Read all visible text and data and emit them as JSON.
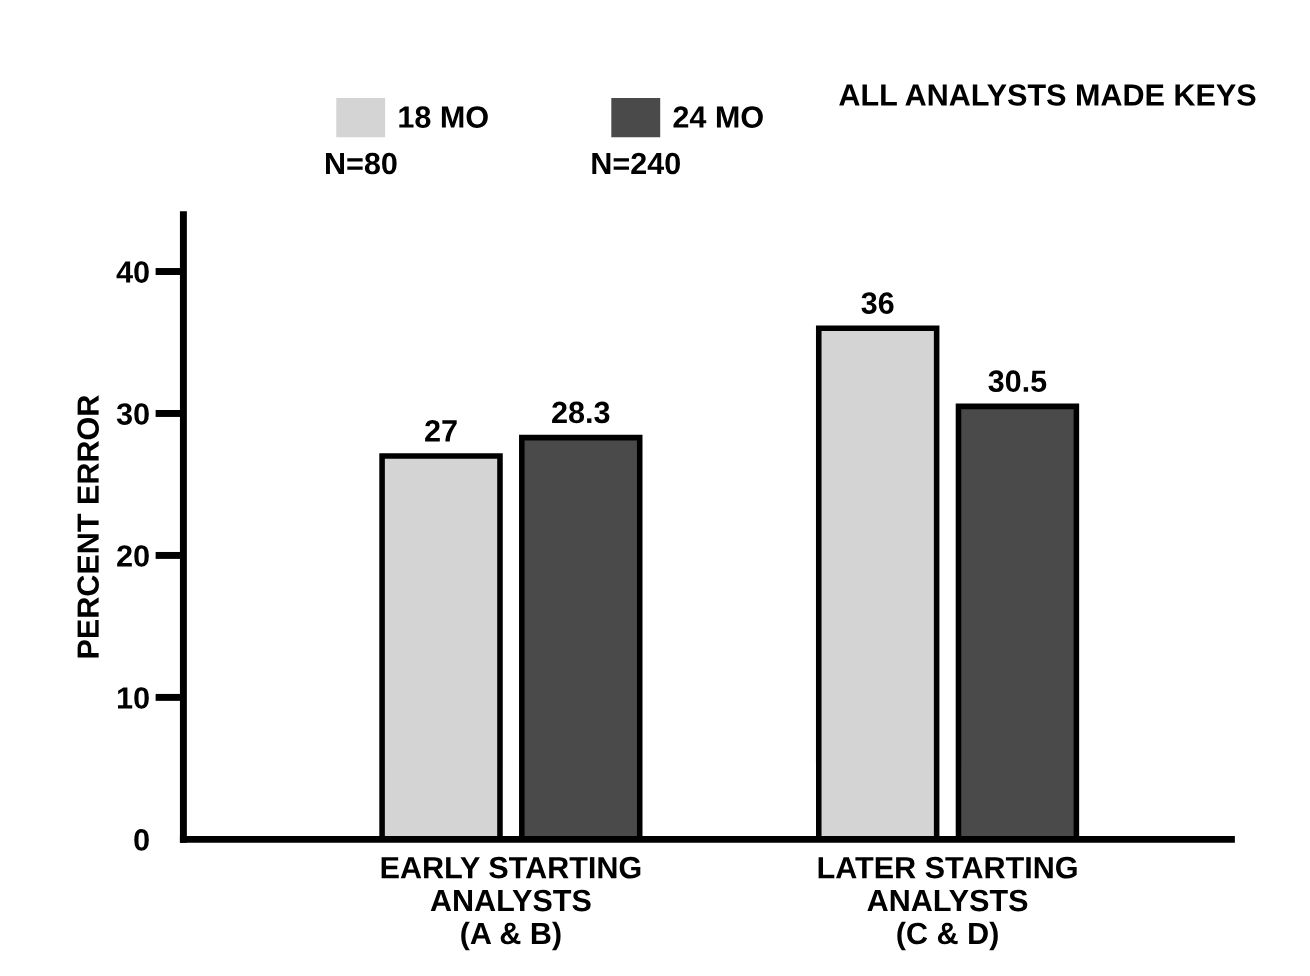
{
  "chart_data": {
    "type": "bar",
    "ylabel": "PERCENT ERROR",
    "categories": [
      "EARLY STARTING\nANALYSTS\n(A & B)",
      "LATER STARTING\nANALYSTS\n(C & D)"
    ],
    "series": [
      {
        "name": "18 MO",
        "color": "#d4d4d4",
        "values": [
          27,
          36
        ]
      },
      {
        "name": "24 MO",
        "color": "#4a4a4a",
        "values": [
          28.3,
          30.5
        ]
      }
    ],
    "annotations": [
      "N=80",
      "N=240",
      "ALL ANALYSTS MADE KEYS"
    ],
    "ylim": [
      0,
      44
    ],
    "yticks": [
      0,
      10,
      20,
      30,
      40
    ],
    "data_labels": true,
    "grid": false,
    "legend": "top"
  }
}
